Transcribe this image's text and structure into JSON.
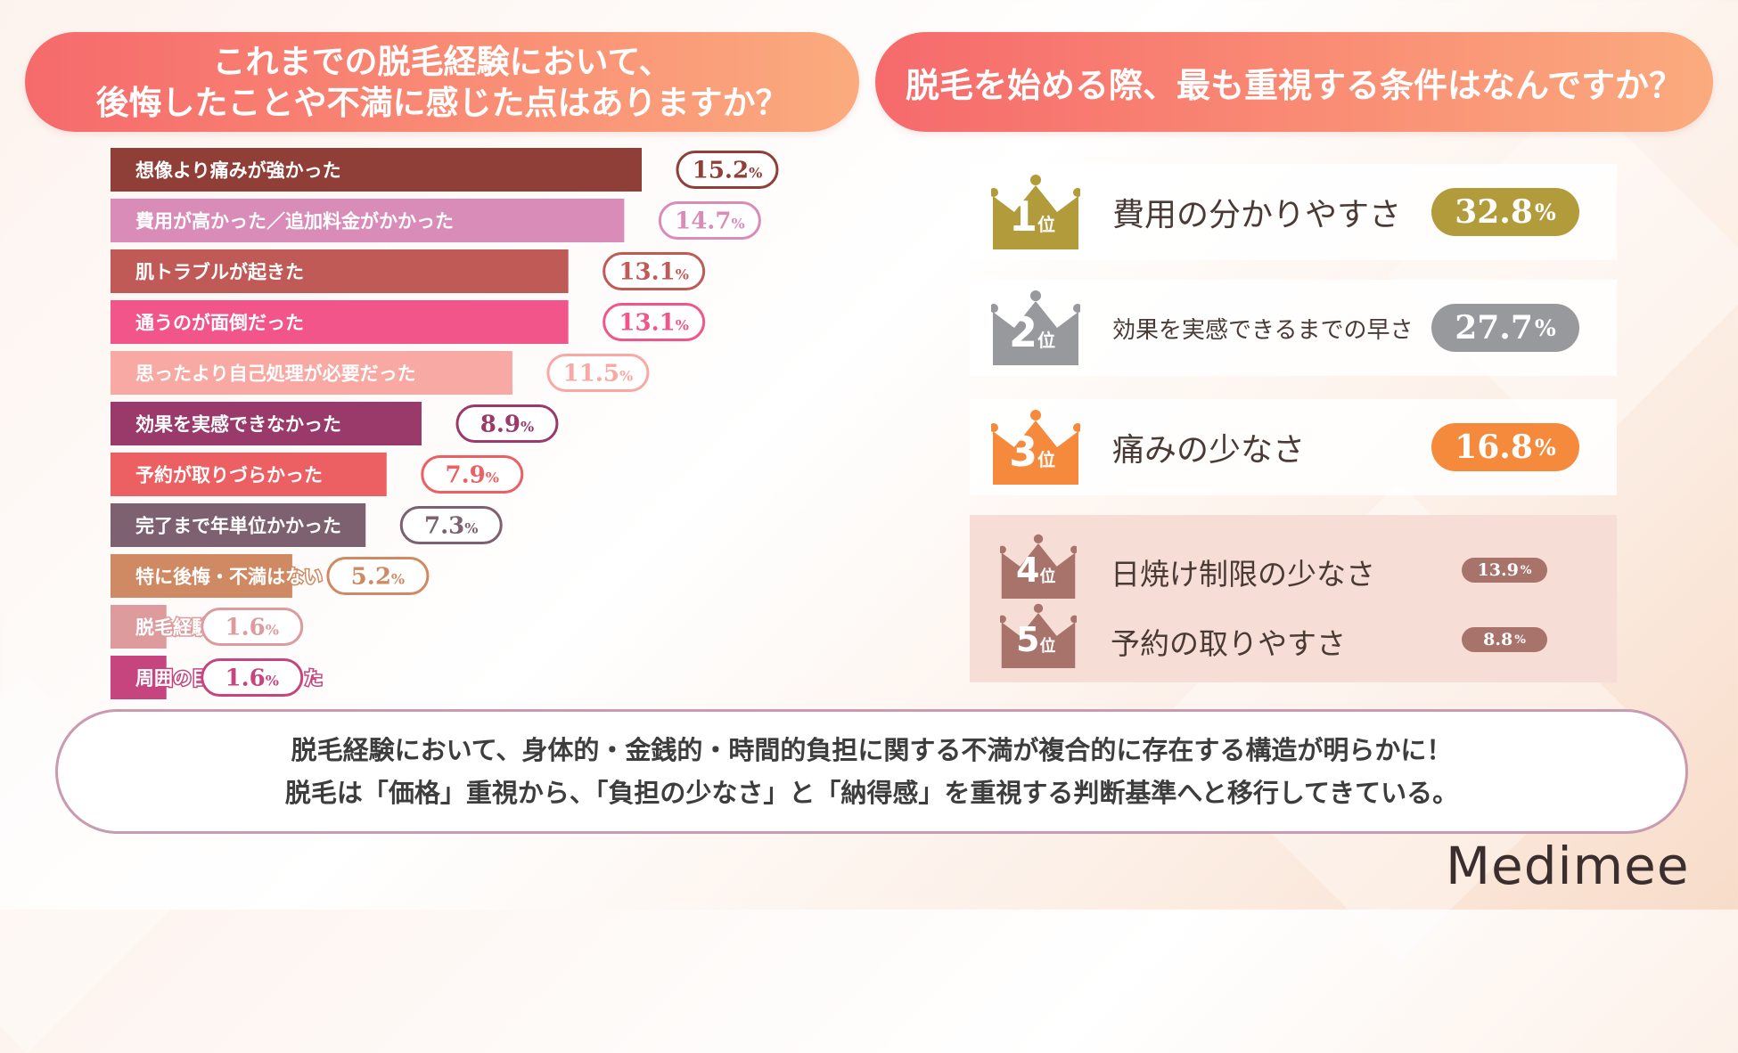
{
  "left_title": {
    "line1": "これまでの脱毛経験において、",
    "line2": "後悔したことや不満に感じた点はありますか？"
  },
  "right_title": "脱毛を始める際、最も重視する条件はなんですか？",
  "chart_data": {
    "type": "bar",
    "orientation": "horizontal",
    "categories": [
      "想像より痛みが強かった",
      "費用が高かった／追加料金がかかった",
      "肌トラブルが起きた",
      "通うのが面倒だった",
      "思ったより自己処理が必要だった",
      "効果を実感できなかった",
      "予約が取りづらかった",
      "完了まで年単位かかった",
      "特に後悔・不満はない",
      "脱毛経験がない",
      "周囲の目が気になった"
    ],
    "values": [
      15.2,
      14.7,
      13.1,
      13.1,
      11.5,
      8.9,
      7.9,
      7.3,
      5.2,
      1.6,
      1.6
    ],
    "value_labels": [
      "15.2",
      "14.7",
      "13.1",
      "13.1",
      "11.5",
      "8.9",
      "7.9",
      "7.3",
      "5.2",
      "1.6",
      "1.6"
    ],
    "unit": "%",
    "colors": [
      "#8f3f38",
      "#d98cb8",
      "#c05a56",
      "#f2558a",
      "#f8a9a3",
      "#993a6b",
      "#ec5f62",
      "#7d6170",
      "#cf8a63",
      "#de9b9e",
      "#c6457f"
    ]
  },
  "ranking": [
    {
      "rank": "1",
      "suffix": "位",
      "label": "費用の分かりやすさ",
      "value": "32.8",
      "unit": "%",
      "color": "#b29b3b"
    },
    {
      "rank": "2",
      "suffix": "位",
      "label": "効果を実感できるまでの早さ",
      "value": "27.7",
      "unit": "%",
      "color": "#97999c"
    },
    {
      "rank": "3",
      "suffix": "位",
      "label": "痛みの少なさ",
      "value": "16.8",
      "unit": "%",
      "color": "#f68a3c"
    },
    {
      "rank": "4",
      "suffix": "位",
      "label": "日焼け制限の少なさ",
      "value": "13.9",
      "unit": "%",
      "color": "#a8736a"
    },
    {
      "rank": "5",
      "suffix": "位",
      "label": "予約の取りやすさ",
      "value": "8.8",
      "unit": "%",
      "color": "#a8736a"
    }
  ],
  "summary": {
    "line1": "脱毛経験において、身体的・金銭的・時間的負担に関する不満が複合的に存在する構造が明らかに！",
    "line2": "脱毛は「価格」重視から、「負担の少なさ」と「納得感」を重視する判断基準へと移行してきている。"
  },
  "logo": "Medimee"
}
